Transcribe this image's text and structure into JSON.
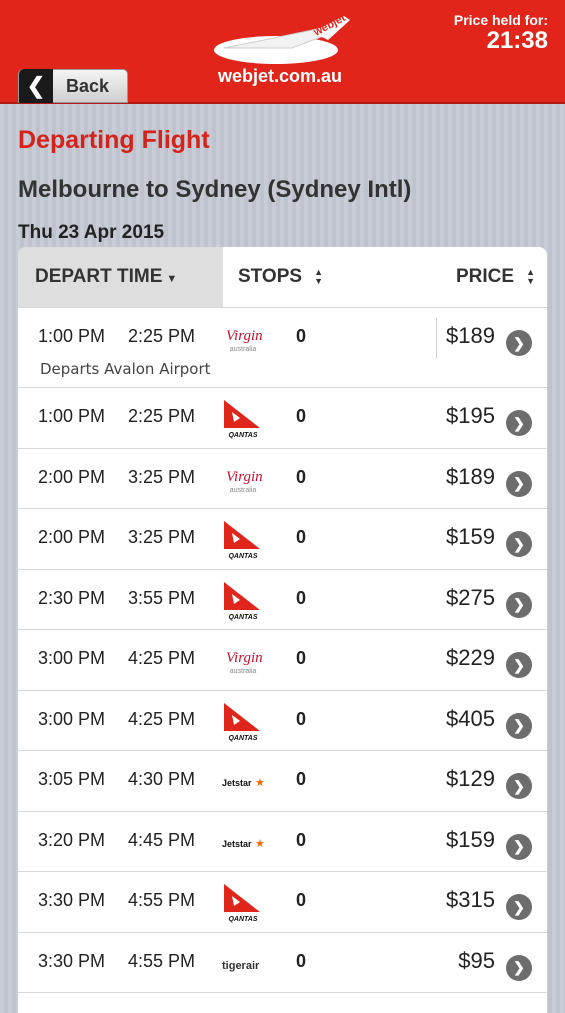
{
  "header": {
    "back_label": "Back",
    "logo_text": "webjet.com.au",
    "logo_wing_text": "webjet",
    "price_held_label": "Price held for:",
    "price_held_time": "21:38"
  },
  "page": {
    "section_title": "Departing Flight",
    "route": "Melbourne to Sydney (Sydney Intl)",
    "date": "Thu 23 Apr 2015"
  },
  "table": {
    "columns": {
      "depart_time": "DEPART TIME",
      "stops": "STOPS",
      "price": "PRICE"
    },
    "rows": [
      {
        "depart": "1:00 PM",
        "arrive": "2:25 PM",
        "airline": "virgin",
        "stops": "0",
        "price": "$189",
        "note": "Departs Avalon Airport"
      },
      {
        "depart": "1:00 PM",
        "arrive": "2:25 PM",
        "airline": "qantas",
        "stops": "0",
        "price": "$195"
      },
      {
        "depart": "2:00 PM",
        "arrive": "3:25 PM",
        "airline": "virgin",
        "stops": "0",
        "price": "$189"
      },
      {
        "depart": "2:00 PM",
        "arrive": "3:25 PM",
        "airline": "qantas",
        "stops": "0",
        "price": "$159"
      },
      {
        "depart": "2:30 PM",
        "arrive": "3:55 PM",
        "airline": "qantas",
        "stops": "0",
        "price": "$275"
      },
      {
        "depart": "3:00 PM",
        "arrive": "4:25 PM",
        "airline": "virgin",
        "stops": "0",
        "price": "$229"
      },
      {
        "depart": "3:00 PM",
        "arrive": "4:25 PM",
        "airline": "qantas",
        "stops": "0",
        "price": "$405"
      },
      {
        "depart": "3:05 PM",
        "arrive": "4:30 PM",
        "airline": "jetstar",
        "stops": "0",
        "price": "$129"
      },
      {
        "depart": "3:20 PM",
        "arrive": "4:45 PM",
        "airline": "jetstar",
        "stops": "0",
        "price": "$159"
      },
      {
        "depart": "3:30 PM",
        "arrive": "4:55 PM",
        "airline": "qantas",
        "stops": "0",
        "price": "$315"
      },
      {
        "depart": "3:30 PM",
        "arrive": "4:55 PM",
        "airline": "tigerair",
        "stops": "0",
        "price": "$95"
      }
    ]
  },
  "airline_logo_text": {
    "virgin": "Virgin",
    "virgin_sub": "australia",
    "qantas": "QANTAS",
    "jetstar": "Jetstar",
    "tigerair": "tigerair"
  },
  "colors": {
    "brand_red": "#e1251b",
    "title_red": "#d4231a",
    "qantas_red": "#e0261b",
    "jetstar_orange": "#ff6a00"
  }
}
